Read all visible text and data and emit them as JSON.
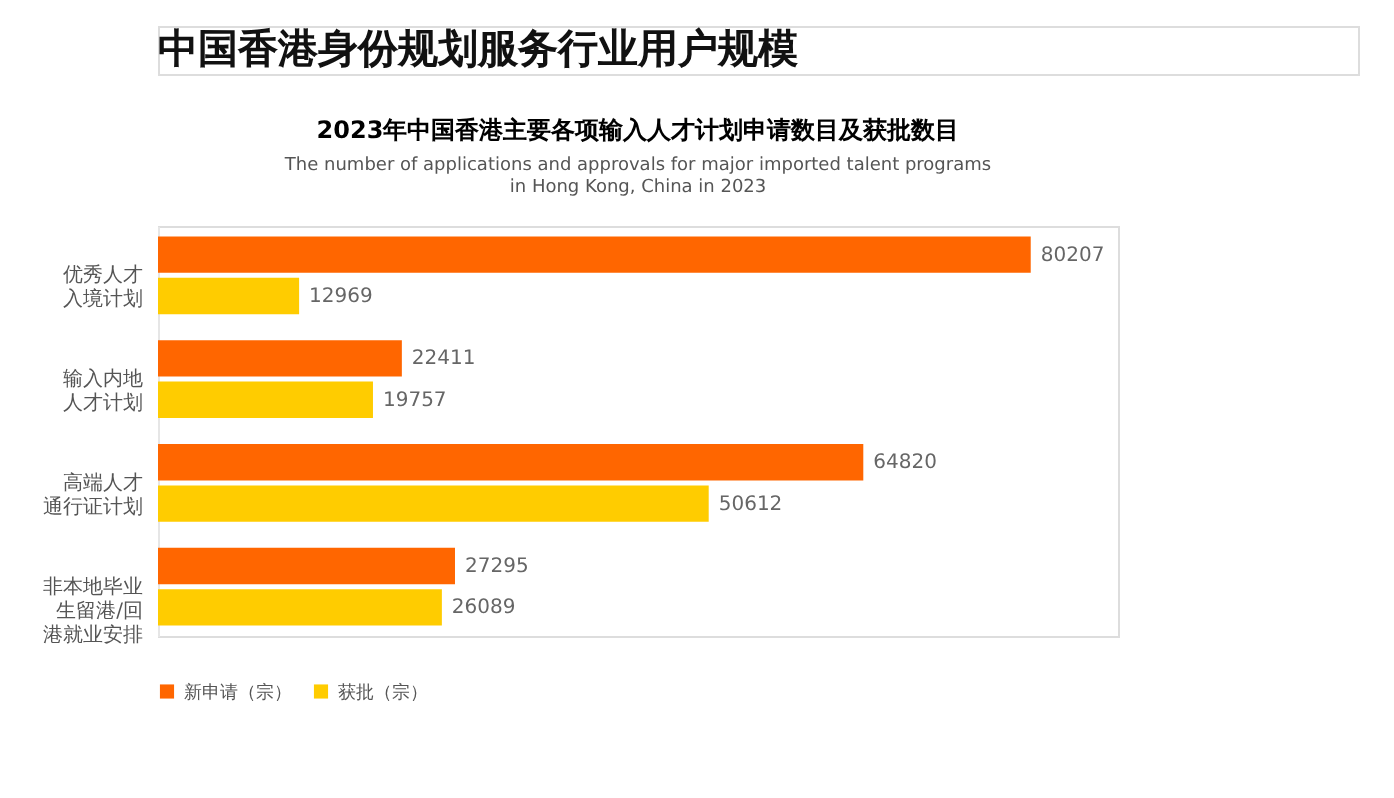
{
  "chart_data": {
    "type": "bar",
    "orientation": "horizontal",
    "title": "2023年中国香港主要各项输入人才计划申请数目及获批数目",
    "subtitle": [
      "The number of applications and approvals for major imported talent programs",
      "in Hong Kong, China in 2023"
    ],
    "annotations": [
      "中国香港身份规划服务行业用户规模"
    ],
    "categories": [
      "优秀人才入境计划",
      "输入内地人才计划",
      "高端人才通行证计划",
      "非本地毕业生留港/回港就业安排"
    ],
    "series": [
      {
        "name": "新申请（宗）",
        "color": "#ff6600",
        "values": [
          80207,
          22411,
          64820,
          27295
        ]
      },
      {
        "name": "获批（宗）",
        "color": "#ffcc00",
        "values": [
          12969,
          19757,
          50612,
          26089
        ]
      }
    ],
    "data_labels": true,
    "legend": "bottom",
    "grid": false
  }
}
